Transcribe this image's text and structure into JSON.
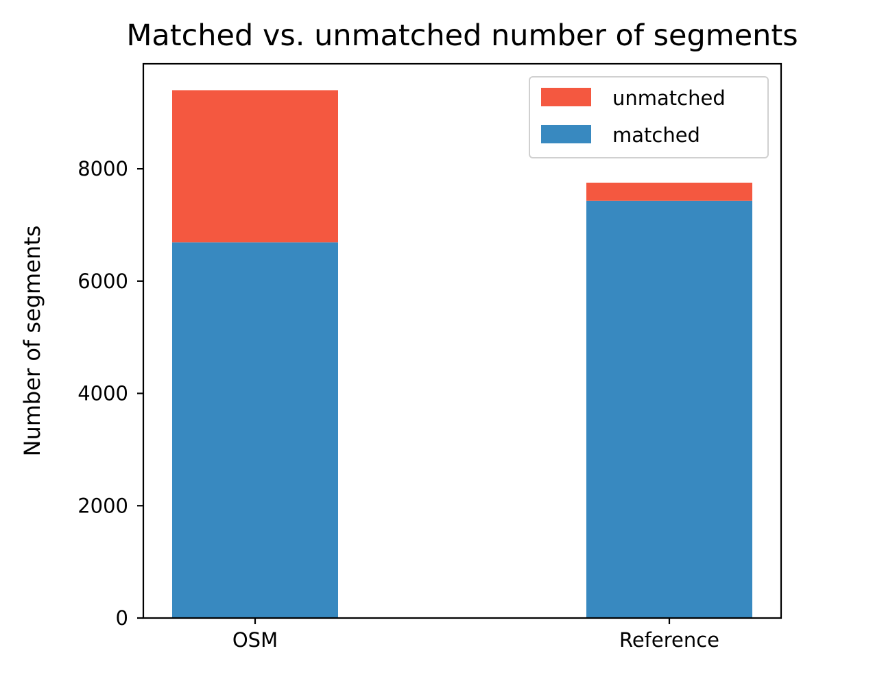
{
  "chart_data": {
    "type": "bar",
    "stacked": true,
    "title": "Matched vs. unmatched number of segments",
    "xlabel": "",
    "ylabel": "Number of segments",
    "categories": [
      "OSM",
      "Reference"
    ],
    "series": [
      {
        "name": "matched",
        "values": [
          6690,
          7430
        ],
        "color": "#3889c0"
      },
      {
        "name": "unmatched",
        "values": [
          2710,
          320
        ],
        "color": "#f45840"
      }
    ],
    "ylim": [
      0,
      9870
    ],
    "yticks": [
      0,
      2000,
      4000,
      6000,
      8000
    ],
    "ytick_labels": [
      "0",
      "2000",
      "4000",
      "6000",
      "8000"
    ],
    "legend": {
      "placement": "top-right",
      "order": [
        "unmatched",
        "matched"
      ]
    },
    "grid": false
  }
}
